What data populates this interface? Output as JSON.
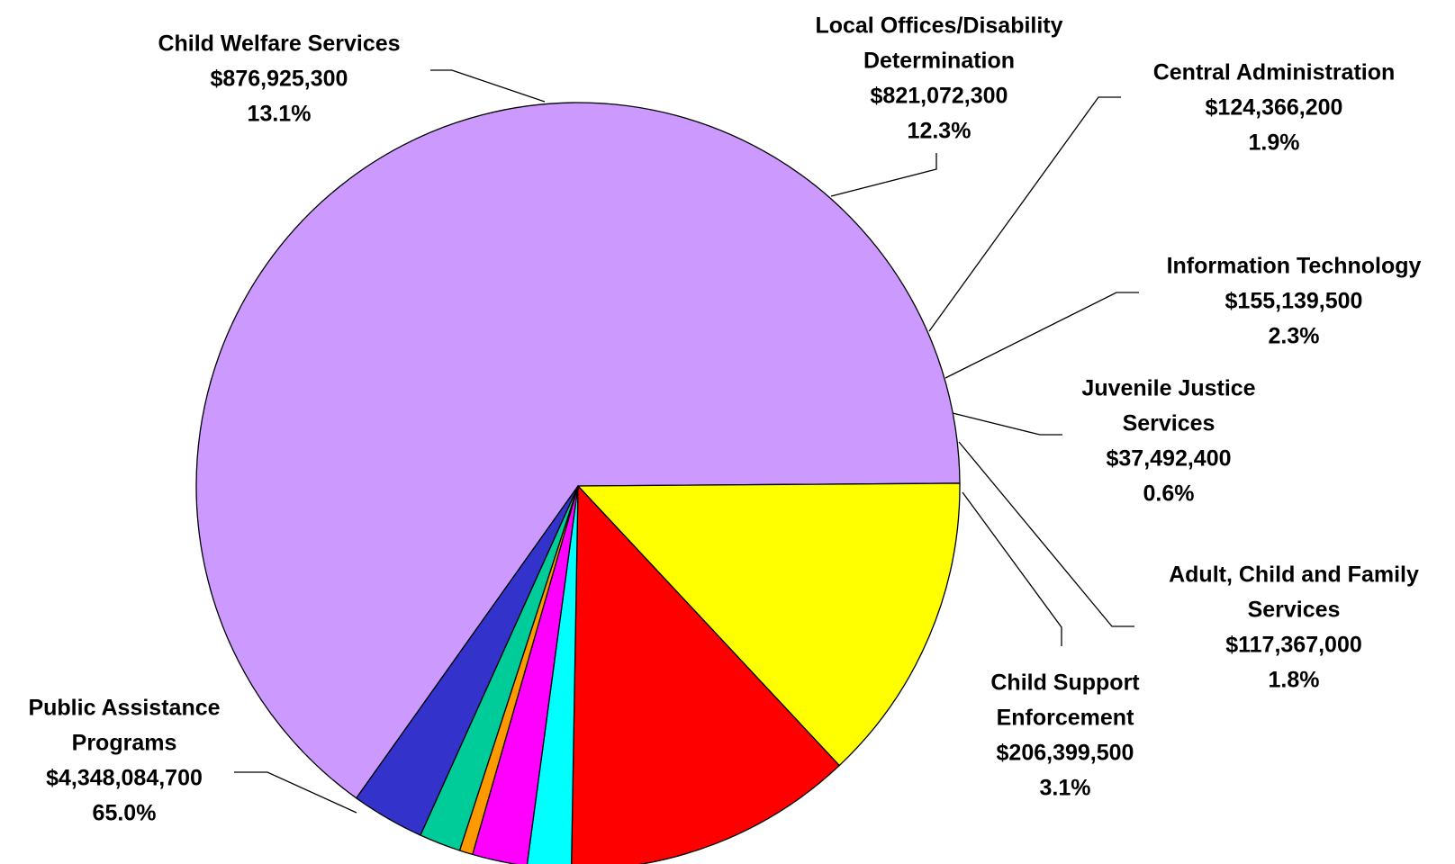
{
  "chart_data": {
    "type": "pie",
    "title": "",
    "slices": [
      {
        "name": "Public Assistance Programs",
        "label_lines": [
          "Public Assistance",
          "Programs"
        ],
        "amount": "$4,348,084,700",
        "value": 4348084700,
        "percent": "65.0%",
        "color": "#cc99ff"
      },
      {
        "name": "Child Welfare Services",
        "label_lines": [
          "Child Welfare Services"
        ],
        "amount": "$876,925,300",
        "value": 876925300,
        "percent": "13.1%",
        "color": "#ffff00"
      },
      {
        "name": "Local Offices/Disability Determination",
        "label_lines": [
          "Local Offices/Disability",
          "Determination"
        ],
        "amount": "$821,072,300",
        "value": 821072300,
        "percent": "12.3%",
        "color": "#ff0000"
      },
      {
        "name": "Central Administration",
        "label_lines": [
          "Central Administration"
        ],
        "amount": "$124,366,200",
        "value": 124366200,
        "percent": "1.9%",
        "color": "#00ffff"
      },
      {
        "name": "Information Technology",
        "label_lines": [
          "Information Technology"
        ],
        "amount": "$155,139,500",
        "value": 155139500,
        "percent": "2.3%",
        "color": "#ff00ff"
      },
      {
        "name": "Juvenile Justice Services",
        "label_lines": [
          "Juvenile Justice",
          "Services"
        ],
        "amount": "$37,492,400",
        "value": 37492400,
        "percent": "0.6%",
        "color": "#ff9900"
      },
      {
        "name": "Adult, Child and Family Services",
        "label_lines": [
          "Adult, Child and Family",
          "Services"
        ],
        "amount": "$117,367,000",
        "value": 117367000,
        "percent": "1.8%",
        "color": "#00cc99"
      },
      {
        "name": "Child Support Enforcement",
        "label_lines": [
          "Child Support",
          "Enforcement"
        ],
        "amount": "$206,399,500",
        "value": 206399500,
        "percent": "3.1%",
        "color": "#3333cc"
      }
    ]
  }
}
